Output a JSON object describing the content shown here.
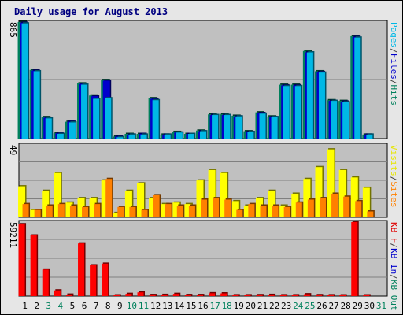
{
  "title": "Daily usage for August 2013",
  "chart_data": [
    {
      "type": "bar",
      "title": "Daily usage for August 2013",
      "y_max_label": "865",
      "ylim": [
        0,
        865
      ],
      "legend": [
        {
          "text": "Pages",
          "color": "#00b8e6"
        },
        {
          "text": "/",
          "color": "#404040"
        },
        {
          "text": "Files",
          "color": "#0000cc"
        },
        {
          "text": "/",
          "color": "#404040"
        },
        {
          "text": "Hits",
          "color": "#00805c"
        }
      ],
      "series": [
        {
          "name": "Hits",
          "color": "#00805c",
          "values": [
            865,
            510,
            160,
            40,
            125,
            410,
            320,
            435,
            15,
            35,
            35,
            300,
            30,
            50,
            35,
            60,
            180,
            180,
            170,
            55,
            195,
            165,
            400,
            400,
            650,
            500,
            285,
            280,
            760,
            30,
            null
          ]
        },
        {
          "name": "Files",
          "color": "#0000cc",
          "values": [
            860,
            505,
            155,
            40,
            125,
            405,
            315,
            430,
            15,
            30,
            35,
            295,
            30,
            45,
            35,
            55,
            175,
            175,
            165,
            50,
            190,
            160,
            395,
            395,
            640,
            495,
            280,
            275,
            755,
            30,
            null
          ]
        },
        {
          "name": "Pages",
          "color": "#00b8e6",
          "values": [
            855,
            500,
            150,
            35,
            120,
            400,
            295,
            300,
            10,
            30,
            30,
            285,
            30,
            45,
            35,
            55,
            175,
            175,
            165,
            50,
            185,
            160,
            390,
            390,
            640,
            490,
            280,
            270,
            750,
            30,
            null
          ]
        }
      ]
    },
    {
      "type": "bar",
      "y_max_label": "49",
      "ylim": [
        0,
        49
      ],
      "legend": [
        {
          "text": "Visits",
          "color": "#e6e600"
        },
        {
          "text": "/",
          "color": "#404040"
        },
        {
          "text": "Sites",
          "color": "#ff8000"
        }
      ],
      "series": [
        {
          "name": "Visits",
          "color": "#ffff00",
          "values": [
            21,
            5,
            18,
            30,
            10,
            13,
            13,
            25,
            3,
            18,
            23,
            13,
            9,
            10,
            9,
            25,
            32,
            30,
            11,
            8,
            13,
            18,
            8,
            16,
            26,
            34,
            46,
            32,
            27,
            20,
            null
          ]
        },
        {
          "name": "Sites",
          "color": "#ff8000",
          "values": [
            9,
            5,
            8,
            9,
            8,
            7,
            9,
            26,
            7,
            7,
            5,
            15,
            9,
            8,
            8,
            12,
            13,
            12,
            5,
            9,
            8,
            8,
            7,
            10,
            12,
            13,
            16,
            14,
            11,
            4,
            null
          ]
        }
      ]
    },
    {
      "type": "bar",
      "y_max_label": "59211",
      "ylim": [
        0,
        59211
      ],
      "legend": [
        {
          "text": "KB F",
          "color": "#e00000"
        },
        {
          "text": "/",
          "color": "#404040"
        },
        {
          "text": "KB In",
          "color": "#0000cc"
        },
        {
          "text": "/",
          "color": "#404040"
        },
        {
          "text": "KB Out",
          "color": "#00805c"
        }
      ],
      "series": [
        {
          "name": "KB F",
          "color": "#ff0000",
          "values": [
            57500,
            48500,
            21200,
            4600,
            1200,
            42100,
            24600,
            25900,
            500,
            1800,
            3000,
            900,
            1000,
            1800,
            900,
            900,
            2300,
            2200,
            700,
            700,
            800,
            1000,
            700,
            700,
            1500,
            800,
            700,
            500,
            59211,
            500,
            null
          ]
        }
      ]
    }
  ],
  "x_labels": [
    "1",
    "2",
    "3",
    "4",
    "5",
    "6",
    "7",
    "8",
    "9",
    "10",
    "11",
    "12",
    "13",
    "14",
    "15",
    "16",
    "17",
    "18",
    "19",
    "20",
    "21",
    "22",
    "23",
    "24",
    "25",
    "26",
    "27",
    "28",
    "29",
    "30",
    "31"
  ],
  "weekend_days": [
    3,
    4,
    10,
    11,
    17,
    18,
    24,
    25,
    31
  ],
  "colors": {
    "weekday_label": "#000000",
    "weekend_label": "#00805c",
    "panel_bg": "#c0c0c0",
    "frame_bg": "#e6e6e6"
  }
}
